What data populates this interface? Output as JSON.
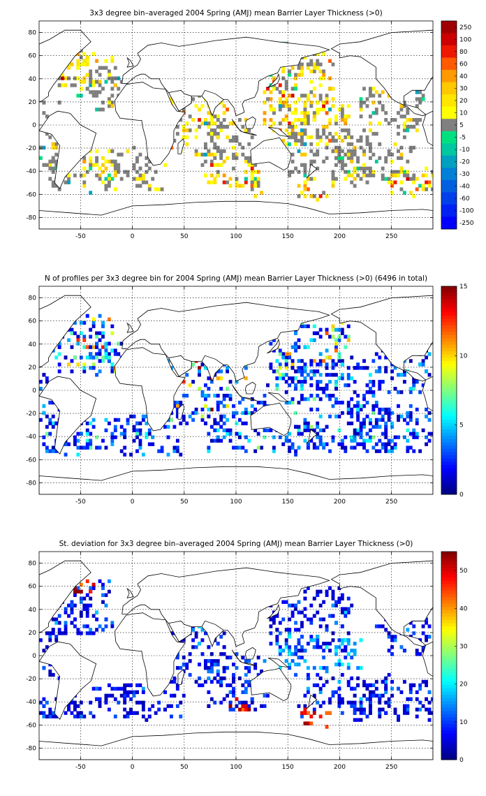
{
  "chart_data": [
    {
      "type": "heatmap",
      "title": "3x3 degree bin–averaged 2004 Spring (AMJ) mean Barrier Layer Thickness (>0)",
      "xlim": [
        -90,
        290
      ],
      "ylim": [
        -90,
        90
      ],
      "xticks": [
        "-50",
        "0",
        "50",
        "100",
        "150",
        "200",
        "250"
      ],
      "yticks": [
        "80",
        "60",
        "40",
        "20",
        "0",
        "-20",
        "-40",
        "-60",
        "-80"
      ],
      "colorbar": {
        "labels": [
          "250",
          "100",
          "80",
          "60",
          "40",
          "30",
          "20",
          "10",
          "5",
          "-5",
          "-10",
          "-20",
          "-30",
          "-40",
          "-60",
          "-100",
          "-250"
        ],
        "colors": [
          "#a00000",
          "#cc0000",
          "#ee1800",
          "#ff5a00",
          "#ff9a00",
          "#ffc800",
          "#ffe600",
          "#ffff00",
          "#808080",
          "#00e080",
          "#00c8a0",
          "#00a0c0",
          "#0080d8",
          "#0060e0",
          "#0040ea",
          "#0020f4",
          "#0000ff"
        ],
        "scheme": "diverging"
      },
      "clusters": [
        [
          -60,
          45,
          22,
          14,
          "pos"
        ],
        [
          -35,
          40,
          18,
          18,
          "grey"
        ],
        [
          -20,
          25,
          20,
          14,
          "grey"
        ],
        [
          -45,
          55,
          12,
          8,
          "pos"
        ],
        [
          -60,
          -45,
          22,
          14,
          "grey"
        ],
        [
          -30,
          -35,
          18,
          12,
          "pos"
        ],
        [
          0,
          -40,
          30,
          18,
          "grey"
        ],
        [
          55,
          0,
          35,
          28,
          "pos"
        ],
        [
          90,
          -15,
          25,
          22,
          "grey"
        ],
        [
          95,
          -45,
          30,
          10,
          "pos"
        ],
        [
          110,
          -55,
          15,
          8,
          "pos"
        ],
        [
          160,
          30,
          35,
          30,
          "pos"
        ],
        [
          170,
          0,
          40,
          20,
          "pos"
        ],
        [
          190,
          -25,
          40,
          20,
          "grey"
        ],
        [
          230,
          -35,
          40,
          18,
          "grey"
        ],
        [
          250,
          10,
          30,
          22,
          "grey"
        ],
        [
          175,
          -55,
          18,
          10,
          "pos"
        ],
        [
          155,
          55,
          25,
          15,
          "grey"
        ],
        [
          -80,
          -10,
          10,
          30,
          "grey"
        ],
        [
          270,
          -50,
          22,
          12,
          "pos"
        ]
      ]
    },
    {
      "type": "heatmap",
      "title": "N of profiles per 3x3 degree bin for 2004 Spring (AMJ) mean Barrier Layer Thickness (>0) (6496 in total)",
      "xlim": [
        -90,
        290
      ],
      "ylim": [
        -90,
        90
      ],
      "xticks": [
        "-50",
        "0",
        "50",
        "100",
        "150",
        "200",
        "250"
      ],
      "yticks": [
        "80",
        "60",
        "40",
        "20",
        "0",
        "-20",
        "-40",
        "-60",
        "-80"
      ],
      "colorbar": {
        "labels": [
          "15",
          "10",
          "5",
          "0"
        ],
        "range": [
          0,
          15
        ],
        "scheme": "jet"
      },
      "clusters": [
        [
          -50,
          40,
          30,
          24,
          "mix"
        ],
        [
          -25,
          25,
          20,
          15,
          "mix"
        ],
        [
          -70,
          -40,
          20,
          18,
          "low"
        ],
        [
          -20,
          -40,
          30,
          14,
          "low"
        ],
        [
          20,
          -40,
          30,
          18,
          "low"
        ],
        [
          60,
          0,
          30,
          28,
          "mix"
        ],
        [
          100,
          -30,
          30,
          25,
          "low"
        ],
        [
          90,
          15,
          20,
          10,
          "mix"
        ],
        [
          170,
          30,
          40,
          30,
          "mix"
        ],
        [
          190,
          5,
          45,
          20,
          "low"
        ],
        [
          200,
          -35,
          45,
          18,
          "low"
        ],
        [
          250,
          -35,
          40,
          20,
          "low"
        ],
        [
          155,
          -45,
          25,
          12,
          "low"
        ],
        [
          260,
          15,
          25,
          20,
          "low"
        ],
        [
          -80,
          0,
          10,
          25,
          "low"
        ]
      ]
    },
    {
      "type": "heatmap",
      "title": "St. deviation for 3x3 degree bin–averaged 2004 Spring (AMJ) mean Barrier Layer Thickness (>0)",
      "xlim": [
        -90,
        290
      ],
      "ylim": [
        -90,
        90
      ],
      "xticks": [
        "-50",
        "0",
        "50",
        "100",
        "150",
        "200",
        "250"
      ],
      "yticks": [
        "80",
        "60",
        "40",
        "20",
        "0",
        "-20",
        "-40",
        "-60",
        "-80"
      ],
      "colorbar": {
        "labels": [
          "50",
          "40",
          "30",
          "20",
          "10",
          "0"
        ],
        "range": [
          0,
          55
        ],
        "scheme": "jet"
      },
      "clusters": [
        [
          -50,
          40,
          30,
          24,
          "low"
        ],
        [
          -50,
          58,
          10,
          6,
          "high"
        ],
        [
          -30,
          -40,
          35,
          14,
          "low"
        ],
        [
          -75,
          -45,
          15,
          10,
          "low"
        ],
        [
          20,
          -40,
          30,
          16,
          "low"
        ],
        [
          60,
          0,
          30,
          28,
          "low"
        ],
        [
          100,
          -25,
          30,
          25,
          "low"
        ],
        [
          105,
          -45,
          15,
          6,
          "high"
        ],
        [
          170,
          30,
          40,
          28,
          "low"
        ],
        [
          180,
          0,
          40,
          15,
          "mid"
        ],
        [
          200,
          -35,
          45,
          18,
          "low"
        ],
        [
          250,
          -40,
          40,
          18,
          "low"
        ],
        [
          175,
          -55,
          15,
          8,
          "high"
        ],
        [
          260,
          15,
          25,
          18,
          "low"
        ],
        [
          -80,
          0,
          10,
          20,
          "low"
        ]
      ]
    }
  ]
}
